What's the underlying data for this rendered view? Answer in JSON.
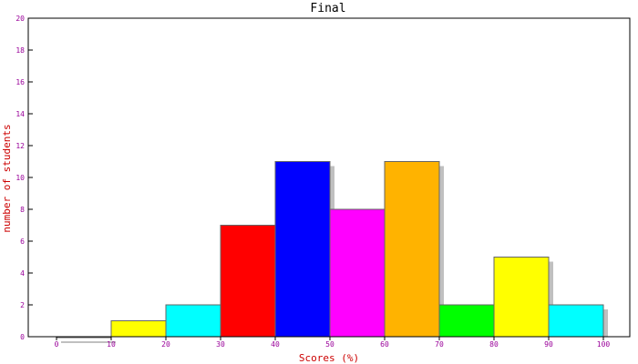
{
  "chart_data": {
    "type": "bar",
    "title": "Final",
    "xlabel": "Scores (%)",
    "ylabel": "number of students",
    "bins": [
      {
        "from": 0,
        "to": 10,
        "value": 0,
        "color": "#ffffff"
      },
      {
        "from": 10,
        "to": 20,
        "value": 1,
        "color": "#ffff00"
      },
      {
        "from": 20,
        "to": 30,
        "value": 2,
        "color": "#00ffff"
      },
      {
        "from": 30,
        "to": 40,
        "value": 7,
        "color": "#ff0000"
      },
      {
        "from": 40,
        "to": 50,
        "value": 11,
        "color": "#0000ff"
      },
      {
        "from": 50,
        "to": 60,
        "value": 8,
        "color": "#ff00ff"
      },
      {
        "from": 60,
        "to": 70,
        "value": 11,
        "color": "#ffb300"
      },
      {
        "from": 70,
        "to": 80,
        "value": 2,
        "color": "#00ff00"
      },
      {
        "from": 80,
        "to": 90,
        "value": 5,
        "color": "#ffff00"
      },
      {
        "from": 90,
        "to": 100,
        "value": 2,
        "color": "#00ffff"
      }
    ],
    "xticks": [
      "0",
      "10",
      "20",
      "30",
      "40",
      "50",
      "60",
      "70",
      "80",
      "90",
      "100"
    ],
    "yticks": [
      "0",
      "2",
      "4",
      "6",
      "8",
      "10",
      "12",
      "14",
      "16",
      "18",
      "20"
    ],
    "xlim": [
      0,
      100
    ],
    "ylim": [
      0,
      20
    ],
    "grid": false,
    "legend": "none",
    "colors": {
      "title": "#000000",
      "axis_label": "#cc0000",
      "tick_label": "#990099",
      "axis": "#000000",
      "bar_shadow": "#c0c0c0"
    }
  }
}
